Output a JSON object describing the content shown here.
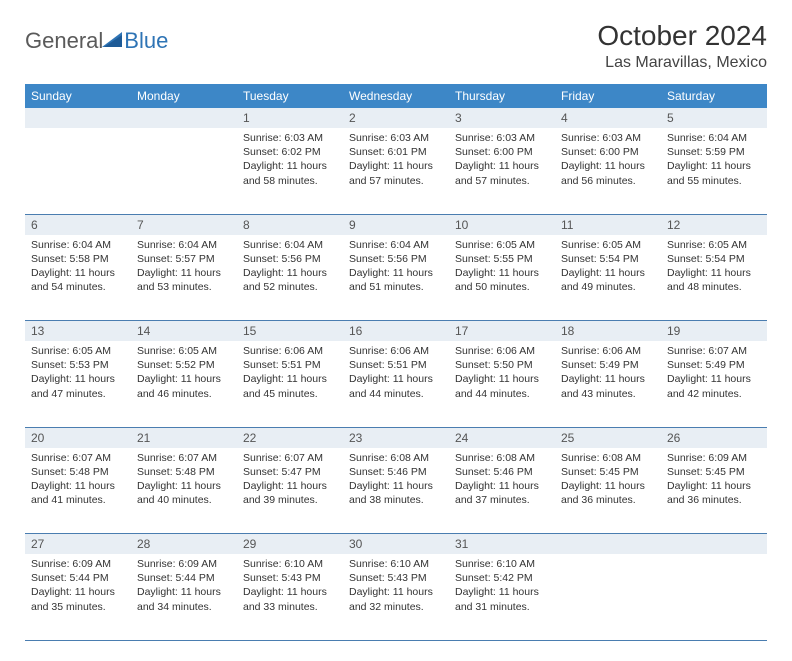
{
  "logo": {
    "part1": "General",
    "part2": "Blue"
  },
  "title": "October 2024",
  "location": "Las Maravillas, Mexico",
  "colors": {
    "header_bg": "#3d87c7",
    "header_text": "#ffffff",
    "daynum_bg": "#e8eef4",
    "daynum_text": "#555555",
    "border": "#4a7db0",
    "body_text": "#333333",
    "logo_gray": "#5a5a5a",
    "logo_blue": "#2e74b5"
  },
  "weekdays": [
    "Sunday",
    "Monday",
    "Tuesday",
    "Wednesday",
    "Thursday",
    "Friday",
    "Saturday"
  ],
  "weeks": [
    {
      "nums": [
        "",
        "",
        "1",
        "2",
        "3",
        "4",
        "5"
      ],
      "cells": [
        null,
        null,
        {
          "sunrise": "Sunrise: 6:03 AM",
          "sunset": "Sunset: 6:02 PM",
          "day1": "Daylight: 11 hours",
          "day2": "and 58 minutes."
        },
        {
          "sunrise": "Sunrise: 6:03 AM",
          "sunset": "Sunset: 6:01 PM",
          "day1": "Daylight: 11 hours",
          "day2": "and 57 minutes."
        },
        {
          "sunrise": "Sunrise: 6:03 AM",
          "sunset": "Sunset: 6:00 PM",
          "day1": "Daylight: 11 hours",
          "day2": "and 57 minutes."
        },
        {
          "sunrise": "Sunrise: 6:03 AM",
          "sunset": "Sunset: 6:00 PM",
          "day1": "Daylight: 11 hours",
          "day2": "and 56 minutes."
        },
        {
          "sunrise": "Sunrise: 6:04 AM",
          "sunset": "Sunset: 5:59 PM",
          "day1": "Daylight: 11 hours",
          "day2": "and 55 minutes."
        }
      ]
    },
    {
      "nums": [
        "6",
        "7",
        "8",
        "9",
        "10",
        "11",
        "12"
      ],
      "cells": [
        {
          "sunrise": "Sunrise: 6:04 AM",
          "sunset": "Sunset: 5:58 PM",
          "day1": "Daylight: 11 hours",
          "day2": "and 54 minutes."
        },
        {
          "sunrise": "Sunrise: 6:04 AM",
          "sunset": "Sunset: 5:57 PM",
          "day1": "Daylight: 11 hours",
          "day2": "and 53 minutes."
        },
        {
          "sunrise": "Sunrise: 6:04 AM",
          "sunset": "Sunset: 5:56 PM",
          "day1": "Daylight: 11 hours",
          "day2": "and 52 minutes."
        },
        {
          "sunrise": "Sunrise: 6:04 AM",
          "sunset": "Sunset: 5:56 PM",
          "day1": "Daylight: 11 hours",
          "day2": "and 51 minutes."
        },
        {
          "sunrise": "Sunrise: 6:05 AM",
          "sunset": "Sunset: 5:55 PM",
          "day1": "Daylight: 11 hours",
          "day2": "and 50 minutes."
        },
        {
          "sunrise": "Sunrise: 6:05 AM",
          "sunset": "Sunset: 5:54 PM",
          "day1": "Daylight: 11 hours",
          "day2": "and 49 minutes."
        },
        {
          "sunrise": "Sunrise: 6:05 AM",
          "sunset": "Sunset: 5:54 PM",
          "day1": "Daylight: 11 hours",
          "day2": "and 48 minutes."
        }
      ]
    },
    {
      "nums": [
        "13",
        "14",
        "15",
        "16",
        "17",
        "18",
        "19"
      ],
      "cells": [
        {
          "sunrise": "Sunrise: 6:05 AM",
          "sunset": "Sunset: 5:53 PM",
          "day1": "Daylight: 11 hours",
          "day2": "and 47 minutes."
        },
        {
          "sunrise": "Sunrise: 6:05 AM",
          "sunset": "Sunset: 5:52 PM",
          "day1": "Daylight: 11 hours",
          "day2": "and 46 minutes."
        },
        {
          "sunrise": "Sunrise: 6:06 AM",
          "sunset": "Sunset: 5:51 PM",
          "day1": "Daylight: 11 hours",
          "day2": "and 45 minutes."
        },
        {
          "sunrise": "Sunrise: 6:06 AM",
          "sunset": "Sunset: 5:51 PM",
          "day1": "Daylight: 11 hours",
          "day2": "and 44 minutes."
        },
        {
          "sunrise": "Sunrise: 6:06 AM",
          "sunset": "Sunset: 5:50 PM",
          "day1": "Daylight: 11 hours",
          "day2": "and 44 minutes."
        },
        {
          "sunrise": "Sunrise: 6:06 AM",
          "sunset": "Sunset: 5:49 PM",
          "day1": "Daylight: 11 hours",
          "day2": "and 43 minutes."
        },
        {
          "sunrise": "Sunrise: 6:07 AM",
          "sunset": "Sunset: 5:49 PM",
          "day1": "Daylight: 11 hours",
          "day2": "and 42 minutes."
        }
      ]
    },
    {
      "nums": [
        "20",
        "21",
        "22",
        "23",
        "24",
        "25",
        "26"
      ],
      "cells": [
        {
          "sunrise": "Sunrise: 6:07 AM",
          "sunset": "Sunset: 5:48 PM",
          "day1": "Daylight: 11 hours",
          "day2": "and 41 minutes."
        },
        {
          "sunrise": "Sunrise: 6:07 AM",
          "sunset": "Sunset: 5:48 PM",
          "day1": "Daylight: 11 hours",
          "day2": "and 40 minutes."
        },
        {
          "sunrise": "Sunrise: 6:07 AM",
          "sunset": "Sunset: 5:47 PM",
          "day1": "Daylight: 11 hours",
          "day2": "and 39 minutes."
        },
        {
          "sunrise": "Sunrise: 6:08 AM",
          "sunset": "Sunset: 5:46 PM",
          "day1": "Daylight: 11 hours",
          "day2": "and 38 minutes."
        },
        {
          "sunrise": "Sunrise: 6:08 AM",
          "sunset": "Sunset: 5:46 PM",
          "day1": "Daylight: 11 hours",
          "day2": "and 37 minutes."
        },
        {
          "sunrise": "Sunrise: 6:08 AM",
          "sunset": "Sunset: 5:45 PM",
          "day1": "Daylight: 11 hours",
          "day2": "and 36 minutes."
        },
        {
          "sunrise": "Sunrise: 6:09 AM",
          "sunset": "Sunset: 5:45 PM",
          "day1": "Daylight: 11 hours",
          "day2": "and 36 minutes."
        }
      ]
    },
    {
      "nums": [
        "27",
        "28",
        "29",
        "30",
        "31",
        "",
        ""
      ],
      "cells": [
        {
          "sunrise": "Sunrise: 6:09 AM",
          "sunset": "Sunset: 5:44 PM",
          "day1": "Daylight: 11 hours",
          "day2": "and 35 minutes."
        },
        {
          "sunrise": "Sunrise: 6:09 AM",
          "sunset": "Sunset: 5:44 PM",
          "day1": "Daylight: 11 hours",
          "day2": "and 34 minutes."
        },
        {
          "sunrise": "Sunrise: 6:10 AM",
          "sunset": "Sunset: 5:43 PM",
          "day1": "Daylight: 11 hours",
          "day2": "and 33 minutes."
        },
        {
          "sunrise": "Sunrise: 6:10 AM",
          "sunset": "Sunset: 5:43 PM",
          "day1": "Daylight: 11 hours",
          "day2": "and 32 minutes."
        },
        {
          "sunrise": "Sunrise: 6:10 AM",
          "sunset": "Sunset: 5:42 PM",
          "day1": "Daylight: 11 hours",
          "day2": "and 31 minutes."
        },
        null,
        null
      ]
    }
  ]
}
